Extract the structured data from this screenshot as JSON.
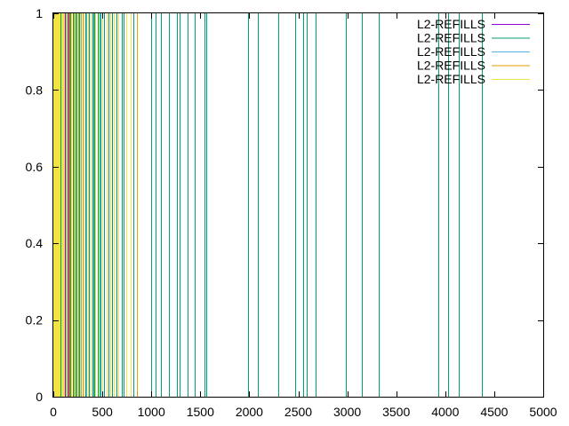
{
  "chart_data": {
    "type": "line",
    "title": "",
    "xlabel": "",
    "ylabel": "",
    "xlim": [
      0,
      5000
    ],
    "ylim": [
      0,
      1
    ],
    "x_ticks": [
      "0",
      "500",
      "1000",
      "1500",
      "2000",
      "2500",
      "3000",
      "3500",
      "4000",
      "4500",
      "5000"
    ],
    "y_ticks": [
      "0",
      "0.2",
      "0.4",
      "0.6",
      "0.8",
      "1"
    ],
    "x_tick_values": [
      0,
      500,
      1000,
      1500,
      2000,
      2500,
      3000,
      3500,
      4000,
      4500,
      5000
    ],
    "y_tick_values": [
      0,
      0.2,
      0.4,
      0.6,
      0.8,
      1
    ],
    "grid": false,
    "legend_position": "top-right",
    "series": [
      {
        "name": "L2-REFILLS",
        "color": "#9400d3",
        "x": [
          12,
          35,
          58,
          90,
          120,
          150,
          175
        ]
      },
      {
        "name": "L2-REFILLS",
        "color": "#009e73",
        "x": [
          22,
          48,
          75,
          105,
          138,
          170,
          200,
          230,
          265,
          295,
          330,
          360,
          395,
          420,
          450,
          480,
          520,
          560,
          600,
          640,
          700,
          720,
          820,
          850,
          1000,
          1040,
          1100,
          1180,
          1260,
          1290,
          1370,
          1440,
          1540,
          1560,
          1990,
          2090,
          2300,
          2470,
          2550,
          2590,
          2680,
          2990,
          3150,
          3320,
          3930,
          4030,
          4140,
          4370
        ]
      },
      {
        "name": "L2-REFILLS",
        "color": "#56b4e9",
        "x": [
          30,
          65,
          100,
          140,
          185,
          240,
          280,
          340,
          410,
          470
        ]
      },
      {
        "name": "L2-REFILLS",
        "color": "#e69f00",
        "x": [
          40,
          85,
          130,
          145,
          160,
          210,
          255,
          300,
          850
        ]
      },
      {
        "name": "L2-REFILLS",
        "color": "#f0e442",
        "x": [
          2,
          6,
          10,
          15,
          20,
          26,
          32,
          38,
          45,
          52,
          60,
          68,
          78,
          88,
          98,
          110,
          125,
          185,
          220,
          245,
          275,
          310,
          350,
          380,
          430,
          460,
          500,
          540,
          580,
          620,
          660,
          740,
          790
        ]
      }
    ]
  }
}
